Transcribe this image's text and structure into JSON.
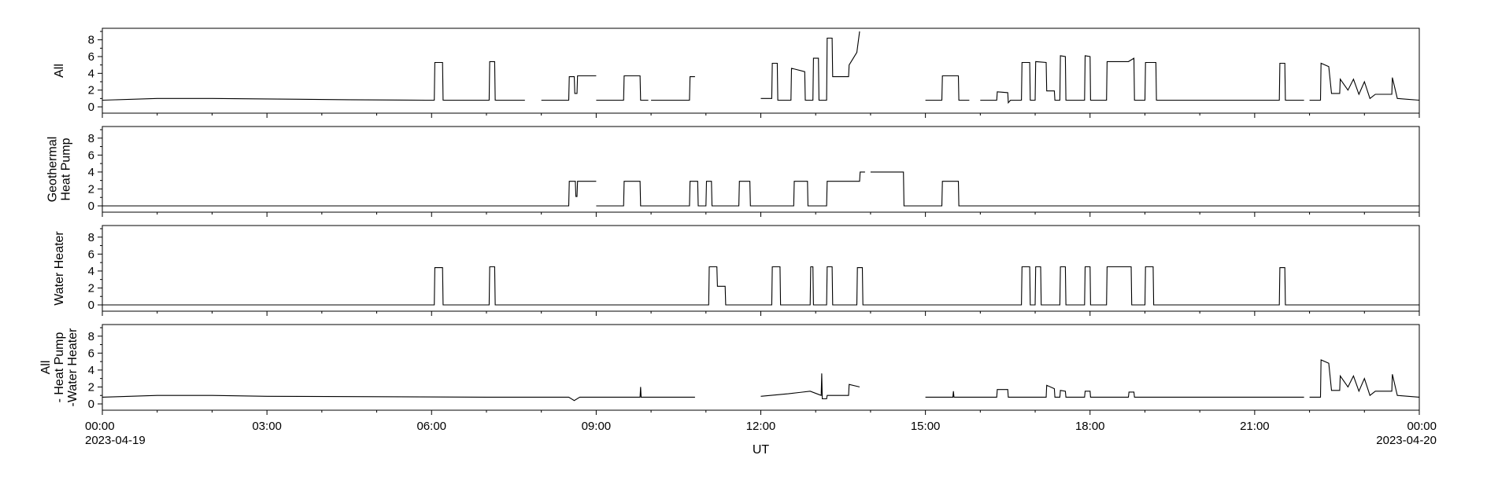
{
  "chart_data": {
    "type": "line",
    "xlabel": "UT",
    "x_start_label": "2023-04-19",
    "x_end_label": "2023-04-20",
    "x_ticks": [
      "00:00",
      "03:00",
      "06:00",
      "09:00",
      "12:00",
      "15:00",
      "18:00",
      "21:00",
      "00:00"
    ],
    "xlim_hours": [
      0,
      24
    ],
    "ylim": [
      0,
      9
    ],
    "y_ticks": [
      "0",
      "2",
      "4",
      "6",
      "8"
    ],
    "panels": [
      {
        "ylabel_lines": [
          "All"
        ],
        "points": [
          [
            0,
            0.8
          ],
          [
            1.0,
            1.0
          ],
          [
            2.0,
            1.0
          ],
          [
            3.0,
            0.95
          ],
          [
            4.5,
            0.85
          ],
          [
            5.9,
            0.8
          ],
          [
            6.05,
            0.8
          ],
          [
            6.06,
            5.3
          ],
          [
            6.2,
            5.3
          ],
          [
            6.21,
            0.8
          ],
          [
            7.05,
            0.8
          ],
          [
            7.06,
            5.4
          ],
          [
            7.15,
            5.4
          ],
          [
            7.16,
            0.8
          ],
          [
            7.7,
            0.8
          ],
          [
            null,
            null
          ],
          [
            8.0,
            0.8
          ],
          [
            8.5,
            0.8
          ],
          [
            8.51,
            3.6
          ],
          [
            8.6,
            3.6
          ],
          [
            8.61,
            1.6
          ],
          [
            8.65,
            1.6
          ],
          [
            8.66,
            3.7
          ],
          [
            9.0,
            3.7
          ],
          [
            null,
            null
          ],
          [
            9.0,
            0.8
          ],
          [
            9.5,
            0.8
          ],
          [
            9.51,
            3.7
          ],
          [
            9.8,
            3.7
          ],
          [
            9.81,
            0.8
          ],
          [
            9.95,
            0.8
          ],
          [
            null,
            null
          ],
          [
            10.0,
            0.8
          ],
          [
            10.7,
            0.8
          ],
          [
            10.71,
            3.6
          ],
          [
            10.8,
            3.6
          ],
          [
            null,
            null
          ],
          [
            12.0,
            1.0
          ],
          [
            12.2,
            1.0
          ],
          [
            12.21,
            5.2
          ],
          [
            12.3,
            5.2
          ],
          [
            12.31,
            0.8
          ],
          [
            12.55,
            0.8
          ],
          [
            12.56,
            4.6
          ],
          [
            12.8,
            4.2
          ],
          [
            12.81,
            0.8
          ],
          [
            12.95,
            0.8
          ],
          [
            12.96,
            5.8
          ],
          [
            13.05,
            5.8
          ],
          [
            13.06,
            0.8
          ],
          [
            13.2,
            0.8
          ],
          [
            13.21,
            8.2
          ],
          [
            13.3,
            8.2
          ],
          [
            13.31,
            3.6
          ],
          [
            13.6,
            3.6
          ],
          [
            13.61,
            5.0
          ],
          [
            13.75,
            6.5
          ],
          [
            13.8,
            9.0
          ],
          [
            null,
            null
          ],
          [
            15.0,
            0.8
          ],
          [
            15.3,
            0.8
          ],
          [
            15.31,
            3.7
          ],
          [
            15.6,
            3.7
          ],
          [
            15.61,
            0.8
          ],
          [
            15.8,
            0.8
          ],
          [
            null,
            null
          ],
          [
            16.0,
            0.8
          ],
          [
            16.3,
            0.8
          ],
          [
            16.31,
            1.8
          ],
          [
            16.5,
            1.7
          ],
          [
            16.51,
            0.5
          ],
          [
            16.55,
            0.8
          ],
          [
            16.75,
            0.8
          ],
          [
            16.76,
            5.3
          ],
          [
            16.9,
            5.3
          ],
          [
            16.91,
            0.8
          ],
          [
            17.0,
            0.8
          ],
          [
            17.01,
            5.4
          ],
          [
            17.2,
            5.3
          ],
          [
            17.21,
            1.9
          ],
          [
            17.35,
            1.9
          ],
          [
            17.36,
            0.8
          ],
          [
            17.45,
            0.8
          ],
          [
            17.46,
            6.1
          ],
          [
            17.55,
            6.0
          ],
          [
            17.56,
            0.8
          ],
          [
            17.9,
            0.8
          ],
          [
            17.91,
            6.1
          ],
          [
            18.0,
            6.0
          ],
          [
            18.01,
            0.8
          ],
          [
            18.3,
            0.8
          ],
          [
            18.31,
            5.4
          ],
          [
            18.7,
            5.4
          ],
          [
            18.8,
            5.8
          ],
          [
            18.81,
            0.8
          ],
          [
            19.0,
            0.8
          ],
          [
            19.01,
            5.3
          ],
          [
            19.2,
            5.3
          ],
          [
            19.21,
            0.8
          ],
          [
            20.0,
            0.8
          ],
          [
            21.0,
            0.8
          ],
          [
            21.45,
            0.8
          ],
          [
            21.46,
            5.2
          ],
          [
            21.55,
            5.2
          ],
          [
            21.56,
            0.8
          ],
          [
            21.9,
            0.8
          ],
          [
            null,
            null
          ],
          [
            22.0,
            0.8
          ],
          [
            22.2,
            0.8
          ],
          [
            22.21,
            5.2
          ],
          [
            22.35,
            4.8
          ],
          [
            22.4,
            1.6
          ],
          [
            22.55,
            1.6
          ],
          [
            22.56,
            3.3
          ],
          [
            22.7,
            2.0
          ],
          [
            22.8,
            3.3
          ],
          [
            22.9,
            1.5
          ],
          [
            23.0,
            3.0
          ],
          [
            23.1,
            1.0
          ],
          [
            23.2,
            1.5
          ],
          [
            23.5,
            1.5
          ],
          [
            23.51,
            3.5
          ],
          [
            23.6,
            1.0
          ],
          [
            24.0,
            0.8
          ]
        ]
      },
      {
        "ylabel_lines": [
          "Geothermal",
          "Heat Pump"
        ],
        "points": [
          [
            0,
            0
          ],
          [
            8.5,
            0
          ],
          [
            8.51,
            2.9
          ],
          [
            8.62,
            2.9
          ],
          [
            8.63,
            1.1
          ],
          [
            8.65,
            1.1
          ],
          [
            8.66,
            2.9
          ],
          [
            9.0,
            2.9
          ],
          [
            null,
            null
          ],
          [
            9.0,
            0
          ],
          [
            9.5,
            0
          ],
          [
            9.51,
            2.9
          ],
          [
            9.8,
            2.9
          ],
          [
            9.81,
            0
          ],
          [
            10.0,
            0
          ],
          [
            10.7,
            0
          ],
          [
            10.71,
            2.9
          ],
          [
            10.85,
            2.9
          ],
          [
            10.86,
            0
          ],
          [
            11.0,
            0
          ],
          [
            11.01,
            2.9
          ],
          [
            11.1,
            2.9
          ],
          [
            11.11,
            0
          ],
          [
            11.6,
            0
          ],
          [
            11.61,
            2.9
          ],
          [
            11.8,
            2.9
          ],
          [
            11.81,
            0
          ],
          [
            12.6,
            0
          ],
          [
            12.61,
            2.9
          ],
          [
            12.85,
            2.9
          ],
          [
            12.86,
            0
          ],
          [
            13.2,
            0
          ],
          [
            13.21,
            2.9
          ],
          [
            13.8,
            2.9
          ],
          [
            13.81,
            4.0
          ],
          [
            13.9,
            4.0
          ],
          [
            null,
            null
          ],
          [
            14.0,
            4.0
          ],
          [
            14.6,
            4.0
          ],
          [
            14.61,
            0
          ],
          [
            15.3,
            0
          ],
          [
            15.31,
            2.9
          ],
          [
            15.6,
            2.9
          ],
          [
            15.61,
            0
          ],
          [
            24.0,
            0
          ]
        ]
      },
      {
        "ylabel_lines": [
          "Water Heater"
        ],
        "points": [
          [
            0,
            0
          ],
          [
            6.05,
            0
          ],
          [
            6.06,
            4.4
          ],
          [
            6.2,
            4.4
          ],
          [
            6.21,
            0
          ],
          [
            7.05,
            0
          ],
          [
            7.06,
            4.5
          ],
          [
            7.15,
            4.5
          ],
          [
            7.16,
            0
          ],
          [
            11.05,
            0
          ],
          [
            11.06,
            4.5
          ],
          [
            11.2,
            4.5
          ],
          [
            11.21,
            2.2
          ],
          [
            11.35,
            2.2
          ],
          [
            11.36,
            0
          ],
          [
            12.2,
            0
          ],
          [
            12.21,
            4.5
          ],
          [
            12.35,
            4.5
          ],
          [
            12.36,
            0
          ],
          [
            12.9,
            0
          ],
          [
            12.91,
            4.5
          ],
          [
            12.95,
            4.5
          ],
          [
            12.96,
            0
          ],
          [
            13.2,
            0
          ],
          [
            13.21,
            4.5
          ],
          [
            13.3,
            4.5
          ],
          [
            13.31,
            0
          ],
          [
            13.75,
            0
          ],
          [
            13.76,
            4.4
          ],
          [
            13.85,
            4.4
          ],
          [
            13.86,
            0
          ],
          [
            16.75,
            0
          ],
          [
            16.76,
            4.5
          ],
          [
            16.9,
            4.5
          ],
          [
            16.91,
            0
          ],
          [
            17.0,
            0
          ],
          [
            17.01,
            4.5
          ],
          [
            17.1,
            4.5
          ],
          [
            17.11,
            0
          ],
          [
            17.45,
            0
          ],
          [
            17.46,
            4.5
          ],
          [
            17.55,
            4.5
          ],
          [
            17.56,
            0
          ],
          [
            17.9,
            0
          ],
          [
            17.91,
            4.5
          ],
          [
            18.0,
            4.5
          ],
          [
            18.01,
            0
          ],
          [
            18.3,
            0
          ],
          [
            18.31,
            4.5
          ],
          [
            18.75,
            4.5
          ],
          [
            18.76,
            0
          ],
          [
            19.0,
            0
          ],
          [
            19.01,
            4.5
          ],
          [
            19.15,
            4.5
          ],
          [
            19.16,
            0
          ],
          [
            21.45,
            0
          ],
          [
            21.46,
            4.4
          ],
          [
            21.55,
            4.4
          ],
          [
            21.56,
            0
          ],
          [
            24.0,
            0
          ]
        ]
      },
      {
        "ylabel_lines": [
          "All",
          "- Heat Pump",
          "-Water Heater"
        ],
        "points": [
          [
            0,
            0.8
          ],
          [
            1.0,
            1.0
          ],
          [
            2.0,
            1.0
          ],
          [
            3.0,
            0.9
          ],
          [
            5.0,
            0.85
          ],
          [
            7.0,
            0.8
          ],
          [
            8.5,
            0.8
          ],
          [
            8.6,
            0.4
          ],
          [
            8.7,
            0.8
          ],
          [
            9.8,
            0.8
          ],
          [
            9.81,
            2.0
          ],
          [
            9.82,
            0.8
          ],
          [
            10.8,
            0.8
          ],
          [
            null,
            null
          ],
          [
            12.0,
            0.9
          ],
          [
            12.5,
            1.2
          ],
          [
            12.9,
            1.5
          ],
          [
            13.1,
            1.0
          ],
          [
            13.11,
            3.6
          ],
          [
            13.12,
            0.6
          ],
          [
            13.2,
            0.6
          ],
          [
            13.21,
            1.0
          ],
          [
            13.6,
            1.0
          ],
          [
            13.61,
            2.3
          ],
          [
            13.8,
            2.0
          ],
          [
            null,
            null
          ],
          [
            15.0,
            0.8
          ],
          [
            15.5,
            0.8
          ],
          [
            15.51,
            1.5
          ],
          [
            15.52,
            0.8
          ],
          [
            16.0,
            0.8
          ],
          [
            16.3,
            0.8
          ],
          [
            16.31,
            1.7
          ],
          [
            16.5,
            1.7
          ],
          [
            16.51,
            0.8
          ],
          [
            17.2,
            0.8
          ],
          [
            17.21,
            2.2
          ],
          [
            17.35,
            1.8
          ],
          [
            17.36,
            0.8
          ],
          [
            17.45,
            0.8
          ],
          [
            17.46,
            1.6
          ],
          [
            17.55,
            1.5
          ],
          [
            17.56,
            0.8
          ],
          [
            17.9,
            0.8
          ],
          [
            17.91,
            1.5
          ],
          [
            18.0,
            1.5
          ],
          [
            18.01,
            0.8
          ],
          [
            18.7,
            0.8
          ],
          [
            18.71,
            1.4
          ],
          [
            18.8,
            1.4
          ],
          [
            18.81,
            0.8
          ],
          [
            20.0,
            0.8
          ],
          [
            21.9,
            0.8
          ],
          [
            null,
            null
          ],
          [
            22.0,
            0.8
          ],
          [
            22.2,
            0.8
          ],
          [
            22.21,
            5.2
          ],
          [
            22.35,
            4.8
          ],
          [
            22.4,
            1.6
          ],
          [
            22.55,
            1.6
          ],
          [
            22.56,
            3.3
          ],
          [
            22.7,
            2.0
          ],
          [
            22.8,
            3.3
          ],
          [
            22.9,
            1.5
          ],
          [
            23.0,
            3.0
          ],
          [
            23.1,
            1.0
          ],
          [
            23.2,
            1.5
          ],
          [
            23.5,
            1.5
          ],
          [
            23.51,
            3.5
          ],
          [
            23.6,
            1.0
          ],
          [
            24.0,
            0.8
          ]
        ]
      }
    ]
  }
}
